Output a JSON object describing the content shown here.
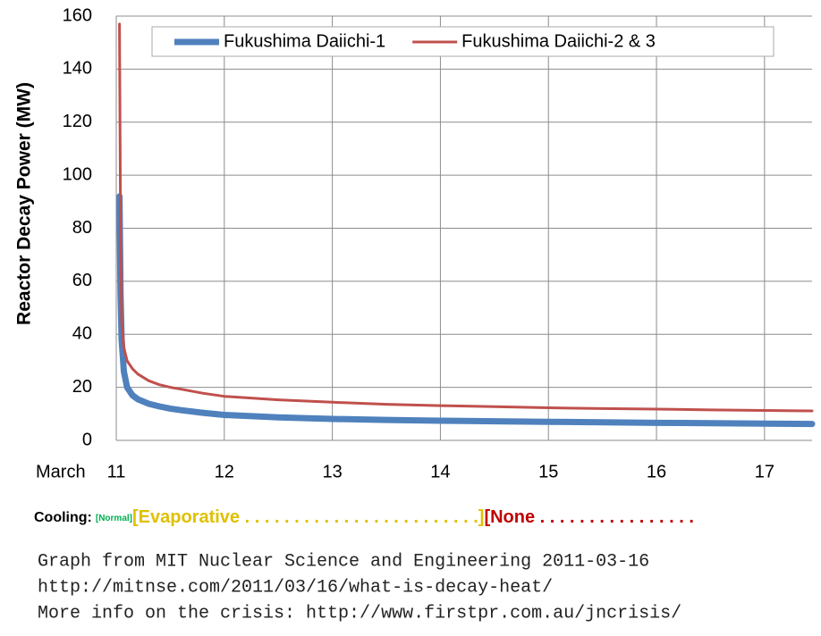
{
  "chart_data": {
    "type": "line",
    "y_label": "Reactor Decay Power (MW)",
    "x_label": "March",
    "x": [
      11.03,
      11.04,
      11.05,
      11.07,
      11.1,
      11.15,
      11.2,
      11.3,
      11.4,
      11.5,
      11.6,
      11.8,
      12,
      12.5,
      13,
      13.5,
      14,
      14.5,
      15,
      15.5,
      16,
      16.5,
      17,
      17.44
    ],
    "series": [
      {
        "name": "Fukushima Daiichi-1",
        "color": "#4f81bd",
        "width": 7,
        "values": [
          92,
          55,
          38,
          26,
          20,
          17,
          15.5,
          13.8,
          12.8,
          12,
          11.4,
          10.4,
          9.6,
          8.7,
          8.1,
          7.7,
          7.4,
          7.2,
          7,
          6.8,
          6.6,
          6.5,
          6.3,
          6.2
        ]
      },
      {
        "name": "Fukushima Daiichi-2 & 3",
        "color": "#c0504d",
        "width": 3,
        "values": [
          157,
          80,
          45,
          35,
          30,
          27,
          25,
          22.5,
          21,
          20,
          19.3,
          17.8,
          16.6,
          15.3,
          14.4,
          13.6,
          13.1,
          12.7,
          12.3,
          12,
          11.8,
          11.5,
          11.3,
          11.1
        ]
      }
    ],
    "xlim": [
      11,
      17.44
    ],
    "xticks": [
      11,
      12,
      13,
      14,
      15,
      16,
      17
    ],
    "ylim": [
      0,
      160
    ],
    "yticks": [
      0,
      20,
      40,
      60,
      80,
      100,
      120,
      140,
      160
    ],
    "grid": true,
    "legend": "top",
    "cooling": {
      "label": "Cooling:",
      "phases": [
        {
          "text": "[Normal]",
          "color": "#00b050"
        },
        {
          "text": "[Evaporative . . . . . . . . . . . . . . . . . . . . . . . .]",
          "color": "#e0c000"
        },
        {
          "text": "[None . . . . . . . . . . . . . . . .",
          "color": "#c00000"
        }
      ]
    },
    "source_lines": [
      "Graph from MIT Nuclear Science and Engineering 2011-03-16",
      "http://mitnse.com/2011/03/16/what-is-decay-heat/",
      "More info on the crisis: http://www.firstpr.com.au/jncrisis/"
    ]
  }
}
